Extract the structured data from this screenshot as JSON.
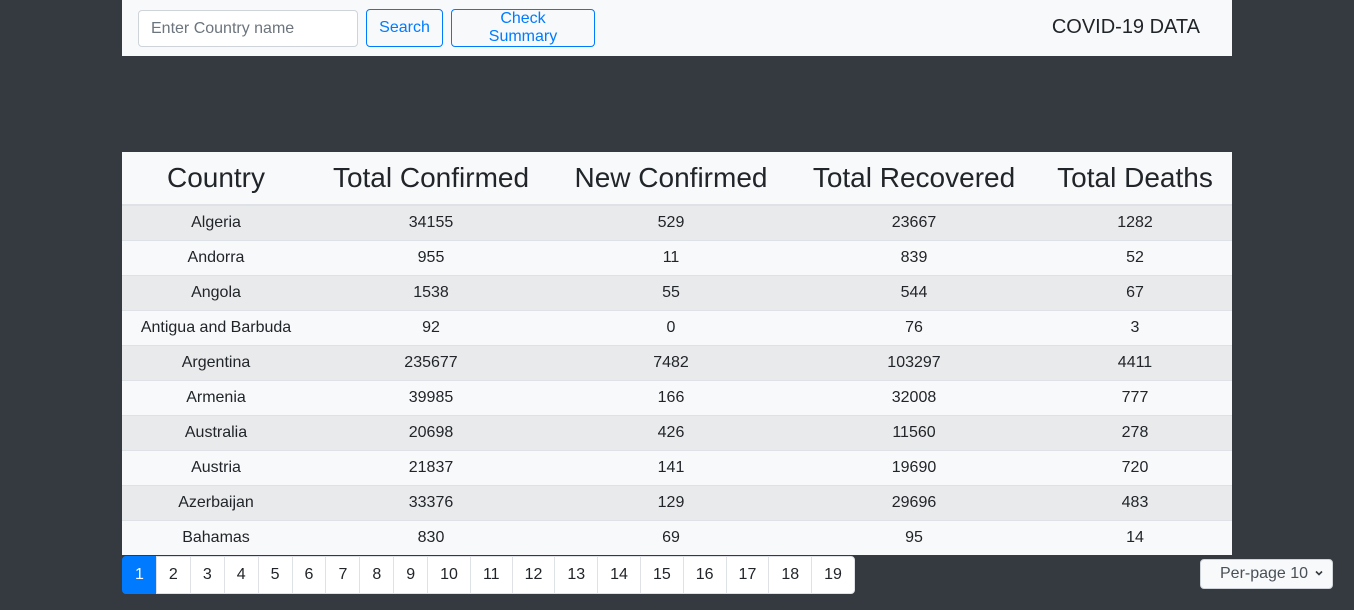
{
  "header": {
    "search_placeholder": "Enter Country name",
    "search_label": "Search",
    "summary_label": "Check Summary",
    "brand": "COVID-19 DATA"
  },
  "table": {
    "columns": [
      "Country",
      "Total Confirmed",
      "New Confirmed",
      "Total Recovered",
      "Total Deaths"
    ],
    "rows": [
      [
        "Algeria",
        "34155",
        "529",
        "23667",
        "1282"
      ],
      [
        "Andorra",
        "955",
        "11",
        "839",
        "52"
      ],
      [
        "Angola",
        "1538",
        "55",
        "544",
        "67"
      ],
      [
        "Antigua and Barbuda",
        "92",
        "0",
        "76",
        "3"
      ],
      [
        "Argentina",
        "235677",
        "7482",
        "103297",
        "4411"
      ],
      [
        "Armenia",
        "39985",
        "166",
        "32008",
        "777"
      ],
      [
        "Australia",
        "20698",
        "426",
        "11560",
        "278"
      ],
      [
        "Austria",
        "21837",
        "141",
        "19690",
        "720"
      ],
      [
        "Azerbaijan",
        "33376",
        "129",
        "29696",
        "483"
      ],
      [
        "Bahamas",
        "830",
        "69",
        "95",
        "14"
      ]
    ]
  },
  "pagination": {
    "pages": [
      "1",
      "2",
      "3",
      "4",
      "5",
      "6",
      "7",
      "8",
      "9",
      "10",
      "11",
      "12",
      "13",
      "14",
      "15",
      "16",
      "17",
      "18",
      "19"
    ],
    "active": "1"
  },
  "per_page": {
    "label": "Per-page 10"
  },
  "colors": {
    "accent": "#007bff",
    "background": "#343a40",
    "panel": "#f8f9fa"
  }
}
